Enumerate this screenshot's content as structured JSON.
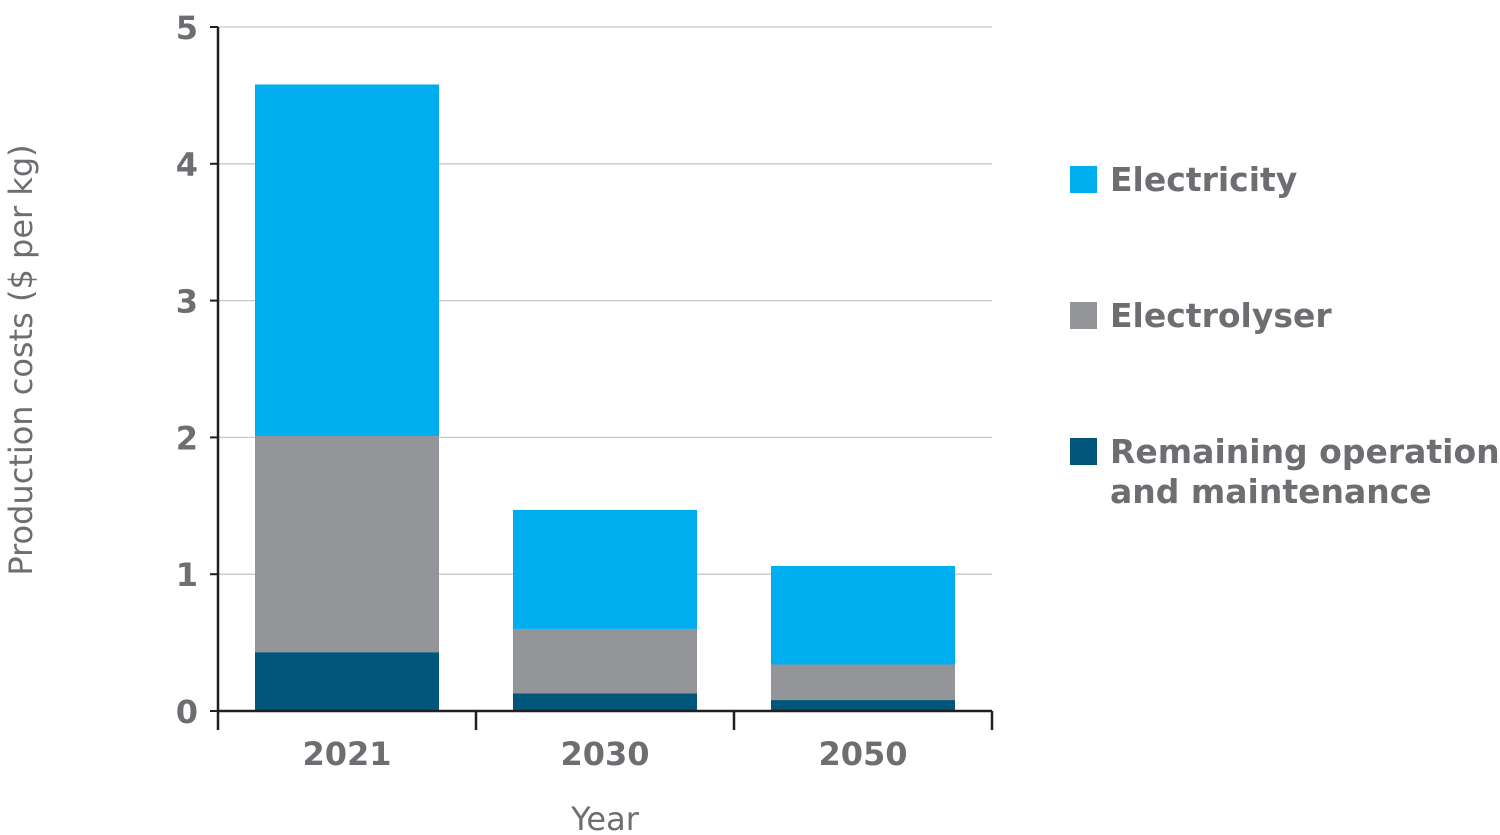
{
  "chart_data": {
    "type": "bar",
    "stacked": true,
    "categories": [
      "2021",
      "2030",
      "2050"
    ],
    "series": [
      {
        "name": "Remaining operation\nand maintenance",
        "color": "#00567a",
        "values": [
          0.43,
          0.13,
          0.08
        ]
      },
      {
        "name": "Electrolyser",
        "color": "#939598",
        "values": [
          1.58,
          0.47,
          0.26
        ]
      },
      {
        "name": "Electricity",
        "color": "#00aeef",
        "values": [
          2.57,
          0.87,
          0.72
        ]
      }
    ],
    "legend_order": [
      2,
      1,
      0
    ],
    "ylabel": "Production costs ($ per kg)",
    "xlabel": "Year",
    "ylim": [
      0,
      5
    ],
    "yticks": [
      "0",
      "1",
      "2",
      "3",
      "4",
      "5"
    ],
    "grid": "horizontal",
    "legend_position": "right"
  }
}
